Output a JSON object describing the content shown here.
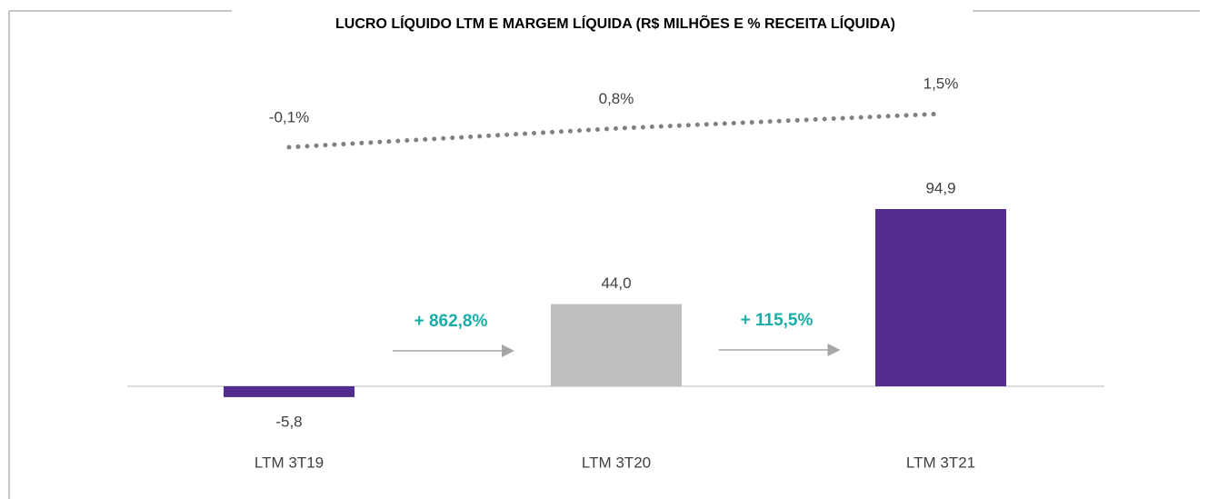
{
  "chart_data": {
    "type": "bar",
    "title": "LUCRO LÍQUIDO LTM E MARGEM LÍQUIDA (R$ MILHÕES E % RECEITA LÍQUIDA)",
    "categories": [
      "LTM 3T19",
      "LTM 3T20",
      "LTM 3T21"
    ],
    "series": [
      {
        "type": "bar",
        "values": [
          -5.8,
          44.0,
          94.9
        ],
        "value_labels": [
          "-5,8",
          "44,0",
          "94,9"
        ],
        "colors": [
          "#522d8e",
          "#bfbfbf",
          "#522d8e"
        ]
      },
      {
        "type": "line",
        "values": [
          -0.1,
          0.8,
          1.5
        ],
        "value_labels": [
          "-0,1%",
          "0,8%",
          "1,5%"
        ],
        "color": "#808080",
        "style": "dotted"
      }
    ],
    "annotations": [
      {
        "text": "+ 862,8%"
      },
      {
        "text": "+ 115,5%"
      }
    ],
    "annotation_color": "#1aada8"
  }
}
